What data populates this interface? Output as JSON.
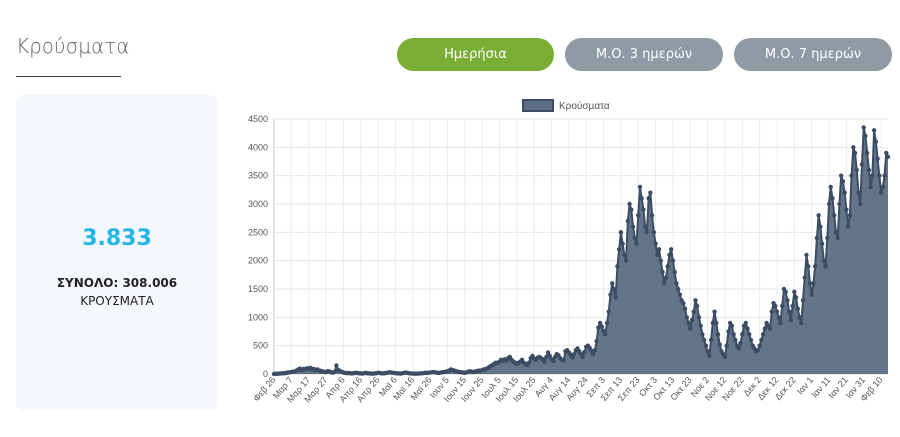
{
  "header": {
    "title": "Κρούσματα"
  },
  "buttons": {
    "daily": "Ημερήσια",
    "avg3": "Μ.Ο. 3 ημερών",
    "avg7": "Μ.Ο. 7 ημερών"
  },
  "summary": {
    "value": "3.833",
    "total": "ΣΥΝΟΛΟ: 308.006",
    "caption": "ΚΡΟΥΣΜΑΤΑ"
  },
  "colors": {
    "active_button": "#7aad33",
    "inactive_button": "#8f9aa5",
    "accent": "#22b6e8",
    "series": "#3c4c63",
    "fill": "#5c6e84"
  },
  "chart_data": {
    "type": "area",
    "legend": "Κρούσματα",
    "ylim": [
      0,
      4500
    ],
    "yticks": [
      0,
      500,
      1000,
      1500,
      2000,
      2500,
      3000,
      3500,
      4000,
      4500
    ],
    "xticks": [
      "Φεβ 26",
      "Μαρ 7",
      "Μαρ 17",
      "Μαρ 27",
      "Απρ 6",
      "Απρ 16",
      "Απρ 26",
      "Μαϊ 6",
      "Μαϊ 16",
      "Μαϊ 26",
      "Ιουν 5",
      "Ιουν 15",
      "Ιουν 25",
      "Ιουλ 5",
      "Ιουλ 15",
      "Ιουλ 25",
      "Αυγ 4",
      "Αυγ 14",
      "Αυγ 24",
      "Σεπ 3",
      "Σεπ 13",
      "Σεπ 23",
      "Οκτ 3",
      "Οκτ 13",
      "Οκτ 23",
      "Νοε 2",
      "Νοε 12",
      "Νοε 22",
      "Δεκ 2",
      "Δεκ 12",
      "Δεκ 22",
      "Ιαν 1",
      "Ιαν 11",
      "Ιαν 21",
      "Ιαν 31",
      "Φεβ 10",
      "Φεβ 20",
      "Μαρ 2",
      "Μαρ 12",
      "Μαρ 22",
      "Απρ 1",
      "Απρ 11"
    ],
    "days_per_tick": 10,
    "values": [
      2,
      5,
      3,
      8,
      10,
      15,
      12,
      20,
      25,
      30,
      35,
      40,
      45,
      60,
      80,
      95,
      70,
      90,
      85,
      100,
      95,
      110,
      80,
      90,
      70,
      80,
      60,
      55,
      45,
      40,
      35,
      50,
      45,
      30,
      25,
      40,
      150,
      70,
      55,
      40,
      25,
      20,
      15,
      18,
      12,
      10,
      15,
      20,
      18,
      12,
      10,
      8,
      15,
      20,
      12,
      10,
      8,
      6,
      10,
      15,
      20,
      18,
      12,
      10,
      15,
      20,
      25,
      30,
      22,
      18,
      15,
      12,
      10,
      8,
      15,
      20,
      25,
      18,
      12,
      10,
      8,
      6,
      5,
      8,
      10,
      12,
      15,
      20,
      18,
      22,
      25,
      30,
      35,
      28,
      22,
      18,
      25,
      30,
      35,
      40,
      50,
      60,
      80,
      70,
      60,
      50,
      40,
      35,
      30,
      25,
      20,
      30,
      40,
      50,
      40,
      35,
      45,
      50,
      60,
      55,
      70,
      80,
      90,
      100,
      120,
      140,
      160,
      180,
      200,
      190,
      220,
      250,
      230,
      260,
      240,
      280,
      300,
      250,
      220,
      200,
      180,
      200,
      220,
      250,
      200,
      180,
      160,
      200,
      280,
      320,
      270,
      250,
      290,
      300,
      280,
      260,
      220,
      300,
      380,
      320,
      260,
      230,
      300,
      350,
      330,
      280,
      250,
      240,
      400,
      420,
      380,
      340,
      290,
      350,
      420,
      450,
      400,
      350,
      300,
      390,
      480,
      500,
      460,
      410,
      350,
      420,
      580,
      820,
      900,
      840,
      760,
      700,
      900,
      1100,
      1400,
      1600,
      1500,
      1350,
      1900,
      2200,
      2500,
      2300,
      2100,
      2000,
      2700,
      3000,
      2900,
      2600,
      2400,
      2300,
      2800,
      3300,
      3100,
      2900,
      2600,
      2500,
      3100,
      3200,
      2800,
      2500,
      2300,
      2100,
      2200,
      2000,
      1800,
      1600,
      1700,
      1900,
      2100,
      2200,
      2000,
      1800,
      1600,
      1500,
      1400,
      1300,
      1250,
      1150,
      1000,
      900,
      800,
      950,
      1100,
      1300,
      1200,
      1000,
      850,
      700,
      600,
      500,
      400,
      320,
      600,
      900,
      1100,
      900,
      700,
      520,
      400,
      350,
      300,
      500,
      750,
      900,
      850,
      700,
      600,
      500,
      450,
      550,
      700,
      850,
      900,
      800,
      700,
      600,
      500,
      450,
      400,
      420,
      500,
      600,
      700,
      800,
      900,
      850,
      800,
      1100,
      1250,
      1200,
      1100,
      1000,
      900,
      1200,
      1500,
      1450,
      1300,
      1100,
      950,
      1200,
      1450,
      1350,
      1150,
      1000,
      900,
      1300,
      1700,
      2100,
      1900,
      1600,
      1400,
      1600,
      1900,
      2400,
      2800,
      2600,
      2300,
      2000,
      1900,
      2400,
      3000,
      3300,
      3100,
      2800,
      2500,
      2400,
      3000,
      3500,
      3400,
      3200,
      2900,
      2600,
      2800,
      3500,
      4000,
      3900,
      3600,
      3200,
      3000,
      3700,
      4350,
      4200,
      3900,
      3600,
      3300,
      3500,
      4300,
      4100,
      3800,
      3500,
      3200,
      3300,
      3500,
      3900,
      3833
    ]
  }
}
